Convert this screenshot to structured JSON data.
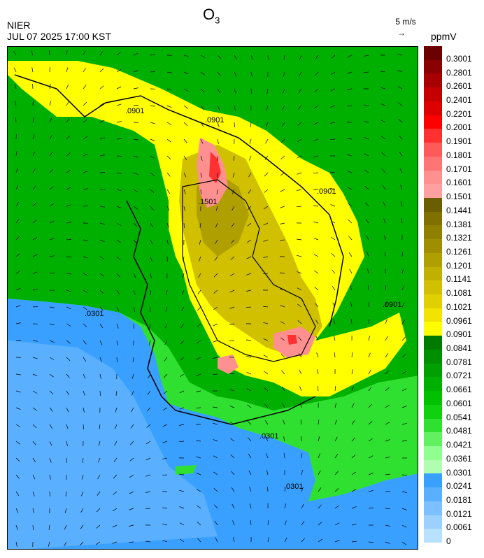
{
  "header": {
    "source": "NIER",
    "timestamp": "JUL 07 2025 17:00 KST",
    "title_main": "O",
    "title_sub": "3",
    "vector_scale": "5 m/s",
    "vector_arrow": "→",
    "unit": "ppmV"
  },
  "colorbar": {
    "labels": [
      "0.3001",
      "0.2801",
      "0.2601",
      "0.2401",
      "0.2201",
      "0.2001",
      "0.1901",
      "0.1801",
      "0.1701",
      "0.1601",
      "0.1501",
      "0.1441",
      "0.1381",
      "0.1321",
      "0.1261",
      "0.1201",
      "0.1141",
      "0.1081",
      "0.1021",
      "0.0961",
      "0.0901",
      "0.0841",
      "0.0781",
      "0.0721",
      "0.0661",
      "0.0601",
      "0.0541",
      "0.0481",
      "0.0421",
      "0.0361",
      "0.0301",
      "0.0241",
      "0.0181",
      "0.0121",
      "0.0061",
      "0"
    ],
    "colors": [
      "#6a0000",
      "#8b0000",
      "#a80000",
      "#c40000",
      "#dd0000",
      "#ff0000",
      "#ff3030",
      "#ff5a5a",
      "#ff7474",
      "#ff9090",
      "#ffa0a0",
      "#6b5e00",
      "#7f7000",
      "#8f8000",
      "#9f8f00",
      "#b09f00",
      "#c0b000",
      "#d0c000",
      "#e0d000",
      "#f0e400",
      "#ffff00",
      "#007a00",
      "#008f00",
      "#00a000",
      "#00b000",
      "#00c000",
      "#10d010",
      "#30e030",
      "#60f060",
      "#90ff90",
      "#b0ffb0",
      "#3aa0ff",
      "#5ab0ff",
      "#7cc0ff",
      "#9cd0ff",
      "#b8e0ff"
    ]
  },
  "map": {
    "contour_labels": [
      ".0901",
      ".0901",
      ".0901",
      ".0901",
      ".0301",
      ".0301",
      ".0301",
      ".1501"
    ]
  }
}
